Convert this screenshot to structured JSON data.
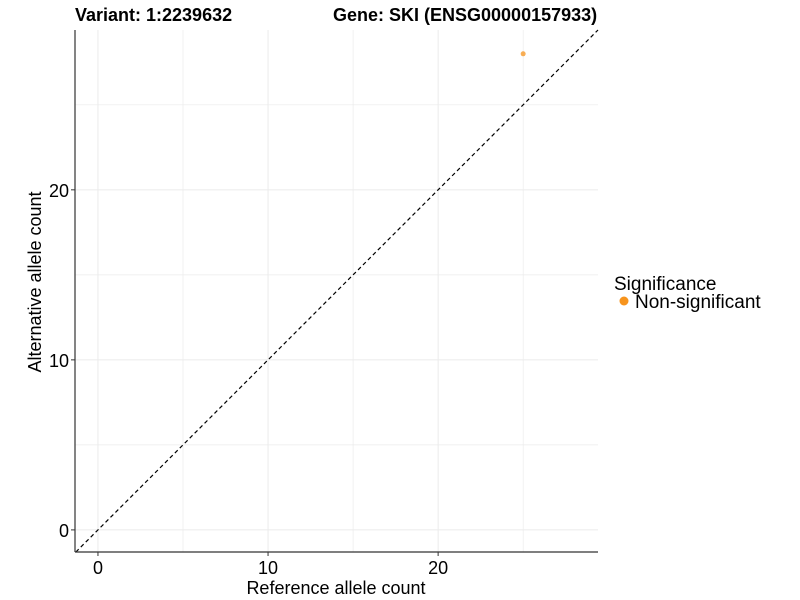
{
  "chart_data": {
    "type": "scatter",
    "title_left": "Variant: 1:2239632",
    "title_right": "Gene: SKI (ENSG00000157933)",
    "xlabel": "Reference allele count",
    "ylabel": "Alternative allele count",
    "xlim": [
      -1.35,
      29.4
    ],
    "ylim": [
      -1.3,
      29.4
    ],
    "x_ticks": [
      0,
      10,
      20
    ],
    "y_ticks": [
      0,
      10,
      20
    ],
    "minor_grid": [
      5,
      15,
      25
    ],
    "grid": true,
    "reference_line": {
      "type": "y=x",
      "style": "dashed"
    },
    "points": [
      {
        "x": 25,
        "y": 28,
        "group": "Non-significant"
      }
    ],
    "legend": {
      "title": "Significance",
      "placement": "right",
      "entries": [
        {
          "label": "Non-significant",
          "color": "#F7941D"
        }
      ]
    }
  }
}
